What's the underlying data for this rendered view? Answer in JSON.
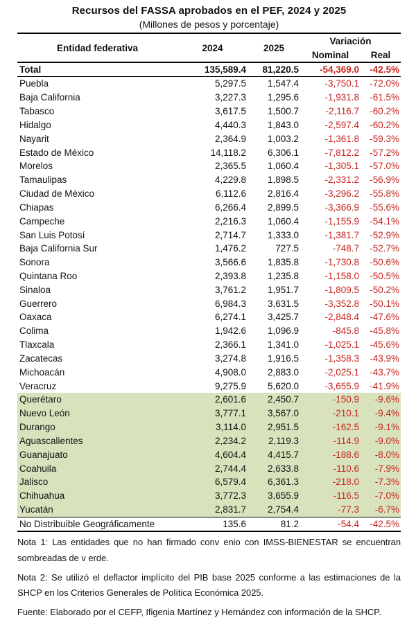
{
  "title": "Recursos del FASSA aprobados en el PEF, 2024 y 2025",
  "subtitle": "(Millones de pesos y porcentaje)",
  "colors": {
    "shaded_row": "#d8e3bd",
    "negative_text": "#c8231e",
    "rule": "#000000"
  },
  "table": {
    "headers": {
      "entity": "Entidad federativa",
      "y2024": "2024",
      "y2025": "2025",
      "variacion": "Variación",
      "nominal": "Nominal",
      "real": "Real"
    },
    "total": {
      "entity": "Total",
      "y2024": "135,589.4",
      "y2025": "81,220.5",
      "nominal": "-54,369.0",
      "real": "-42.5%"
    },
    "rows": [
      {
        "entity": "Puebla",
        "y2024": "5,297.5",
        "y2025": "1,547.4",
        "nominal": "-3,750.1",
        "real": "-72.0%",
        "shaded": false
      },
      {
        "entity": "Baja California",
        "y2024": "3,227.3",
        "y2025": "1,295.6",
        "nominal": "-1,931.8",
        "real": "-61.5%",
        "shaded": false
      },
      {
        "entity": "Tabasco",
        "y2024": "3,617.5",
        "y2025": "1,500.7",
        "nominal": "-2,116.7",
        "real": "-60.2%",
        "shaded": false
      },
      {
        "entity": "Hidalgo",
        "y2024": "4,440.3",
        "y2025": "1,843.0",
        "nominal": "-2,597.4",
        "real": "-60.2%",
        "shaded": false
      },
      {
        "entity": "Nayarit",
        "y2024": "2,364.9",
        "y2025": "1,003.2",
        "nominal": "-1,361.8",
        "real": "-59.3%",
        "shaded": false
      },
      {
        "entity": "Estado de México",
        "y2024": "14,118.2",
        "y2025": "6,306.1",
        "nominal": "-7,812.2",
        "real": "-57.2%",
        "shaded": false
      },
      {
        "entity": "Morelos",
        "y2024": "2,365.5",
        "y2025": "1,060.4",
        "nominal": "-1,305.1",
        "real": "-57.0%",
        "shaded": false
      },
      {
        "entity": "Tamaulipas",
        "y2024": "4,229.8",
        "y2025": "1,898.5",
        "nominal": "-2,331.2",
        "real": "-56.9%",
        "shaded": false
      },
      {
        "entity": "Ciudad de México",
        "y2024": "6,112.6",
        "y2025": "2,816.4",
        "nominal": "-3,296.2",
        "real": "-55.8%",
        "shaded": false
      },
      {
        "entity": "Chiapas",
        "y2024": "6,266.4",
        "y2025": "2,899.5",
        "nominal": "-3,366.9",
        "real": "-55.6%",
        "shaded": false
      },
      {
        "entity": "Campeche",
        "y2024": "2,216.3",
        "y2025": "1,060.4",
        "nominal": "-1,155.9",
        "real": "-54.1%",
        "shaded": false
      },
      {
        "entity": "San Luis Potosí",
        "y2024": "2,714.7",
        "y2025": "1,333.0",
        "nominal": "-1,381.7",
        "real": "-52.9%",
        "shaded": false
      },
      {
        "entity": "Baja California Sur",
        "y2024": "1,476.2",
        "y2025": "727.5",
        "nominal": "-748.7",
        "real": "-52.7%",
        "shaded": false
      },
      {
        "entity": "Sonora",
        "y2024": "3,566.6",
        "y2025": "1,835.8",
        "nominal": "-1,730.8",
        "real": "-50.6%",
        "shaded": false
      },
      {
        "entity": "Quintana Roo",
        "y2024": "2,393.8",
        "y2025": "1,235.8",
        "nominal": "-1,158.0",
        "real": "-50.5%",
        "shaded": false
      },
      {
        "entity": "Sinaloa",
        "y2024": "3,761.2",
        "y2025": "1,951.7",
        "nominal": "-1,809.5",
        "real": "-50.2%",
        "shaded": false
      },
      {
        "entity": "Guerrero",
        "y2024": "6,984.3",
        "y2025": "3,631.5",
        "nominal": "-3,352.8",
        "real": "-50.1%",
        "shaded": false
      },
      {
        "entity": "Oaxaca",
        "y2024": "6,274.1",
        "y2025": "3,425.7",
        "nominal": "-2,848.4",
        "real": "-47.6%",
        "shaded": false
      },
      {
        "entity": "Colima",
        "y2024": "1,942.6",
        "y2025": "1,096.9",
        "nominal": "-845.8",
        "real": "-45.8%",
        "shaded": false
      },
      {
        "entity": "Tlaxcala",
        "y2024": "2,366.1",
        "y2025": "1,341.0",
        "nominal": "-1,025.1",
        "real": "-45.6%",
        "shaded": false
      },
      {
        "entity": "Zacatecas",
        "y2024": "3,274.8",
        "y2025": "1,916.5",
        "nominal": "-1,358.3",
        "real": "-43.9%",
        "shaded": false
      },
      {
        "entity": "Michoacán",
        "y2024": "4,908.0",
        "y2025": "2,883.0",
        "nominal": "-2,025.1",
        "real": "-43.7%",
        "shaded": false
      },
      {
        "entity": "Veracruz",
        "y2024": "9,275.9",
        "y2025": "5,620.0",
        "nominal": "-3,655.9",
        "real": "-41.9%",
        "shaded": false
      },
      {
        "entity": "Querétaro",
        "y2024": "2,601.6",
        "y2025": "2,450.7",
        "nominal": "-150.9",
        "real": "-9.6%",
        "shaded": true
      },
      {
        "entity": "Nuevo León",
        "y2024": "3,777.1",
        "y2025": "3,567.0",
        "nominal": "-210.1",
        "real": "-9.4%",
        "shaded": true
      },
      {
        "entity": "Durango",
        "y2024": "3,114.0",
        "y2025": "2,951.5",
        "nominal": "-162.5",
        "real": "-9.1%",
        "shaded": true
      },
      {
        "entity": "Aguascalientes",
        "y2024": "2,234.2",
        "y2025": "2,119.3",
        "nominal": "-114.9",
        "real": "-9.0%",
        "shaded": true
      },
      {
        "entity": "Guanajuato",
        "y2024": "4,604.4",
        "y2025": "4,415.7",
        "nominal": "-188.6",
        "real": "-8.0%",
        "shaded": true
      },
      {
        "entity": "Coahuila",
        "y2024": "2,744.4",
        "y2025": "2,633.8",
        "nominal": "-110.6",
        "real": "-7.9%",
        "shaded": true
      },
      {
        "entity": "Jalisco",
        "y2024": "6,579.4",
        "y2025": "6,361.3",
        "nominal": "-218.0",
        "real": "-7.3%",
        "shaded": true
      },
      {
        "entity": "Chihuahua",
        "y2024": "3,772.3",
        "y2025": "3,655.9",
        "nominal": "-116.5",
        "real": "-7.0%",
        "shaded": true
      },
      {
        "entity": "Yucatán",
        "y2024": "2,831.7",
        "y2025": "2,754.4",
        "nominal": "-77.3",
        "real": "-6.7%",
        "shaded": true
      }
    ],
    "footer": {
      "entity": "No Distribuible Geográficamente",
      "y2024": "135.6",
      "y2025": "81.2",
      "nominal": "-54.4",
      "real": "-42.5%"
    }
  },
  "notes": {
    "nota1": "Nota 1: Las entidades que no han firmado conv enio con IMSS-BIENESTAR se encuentran sombreadas de v erde.",
    "nota2": "Nota 2: Se utilizó el deflactor implícito del PIB base 2025 conforme a las estimaciones de la SHCP en los Criterios Generales de Política Económica 2025.",
    "fuente": "Fuente: Elaborado por el CEFP, Ifigenia Martínez y Hernández con información de la SHCP."
  }
}
